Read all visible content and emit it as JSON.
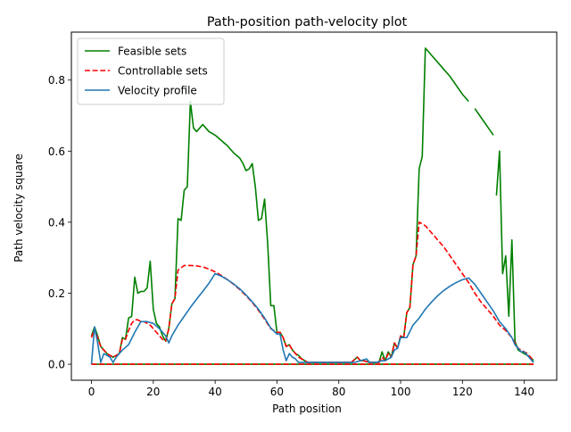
{
  "chart_data": {
    "type": "line",
    "title": "Path-position path-velocity plot",
    "xlabel": "Path position",
    "ylabel": "Path velocity square",
    "xlim": [
      -6.5,
      150.5
    ],
    "ylim": [
      -0.045,
      0.935
    ],
    "xticks": [
      0,
      20,
      40,
      60,
      80,
      100,
      120,
      140
    ],
    "yticks": [
      0.0,
      0.2,
      0.4,
      0.6,
      0.8
    ],
    "ytick_labels": [
      "0.0",
      "0.2",
      "0.4",
      "0.6",
      "0.8"
    ],
    "grid": false,
    "legend": "upper left",
    "series": [
      {
        "name": "Feasible sets",
        "color": "#008000",
        "style": "solid",
        "points": [
          [
            0,
            0.08
          ],
          [
            1,
            0.105
          ],
          [
            2,
            0.08
          ],
          [
            3,
            0.05
          ],
          [
            4,
            0.04
          ],
          [
            5,
            0.03
          ],
          [
            6,
            0.025
          ],
          [
            7,
            0.02
          ],
          [
            8,
            0.025
          ],
          [
            9,
            0.03
          ],
          [
            10,
            0.075
          ],
          [
            11,
            0.07
          ],
          [
            12,
            0.13
          ],
          [
            13,
            0.135
          ],
          [
            14,
            0.245
          ],
          [
            15,
            0.2
          ],
          [
            16,
            0.205
          ],
          [
            17,
            0.205
          ],
          [
            18,
            0.215
          ],
          [
            19,
            0.29
          ],
          [
            20,
            0.155
          ],
          [
            21,
            0.115
          ],
          [
            22,
            0.105
          ],
          [
            23,
            0.08
          ],
          [
            24,
            0.065
          ],
          [
            25,
            0.1
          ],
          [
            26,
            0.17
          ],
          [
            27,
            0.185
          ],
          [
            28,
            0.41
          ],
          [
            29,
            0.405
          ],
          [
            30,
            0.49
          ],
          [
            31,
            0.5
          ],
          [
            32,
            0.74
          ],
          [
            33,
            0.665
          ],
          [
            34,
            0.655
          ],
          [
            35,
            0.665
          ],
          [
            36,
            0.675
          ],
          [
            37,
            0.665
          ],
          [
            38,
            0.655
          ],
          [
            40,
            0.645
          ],
          [
            42,
            0.63
          ],
          [
            44,
            0.615
          ],
          [
            46,
            0.595
          ],
          [
            48,
            0.58
          ],
          [
            49,
            0.565
          ],
          [
            50,
            0.545
          ],
          [
            51,
            0.55
          ],
          [
            52,
            0.565
          ],
          [
            53,
            0.5
          ],
          [
            54,
            0.405
          ],
          [
            55,
            0.41
          ],
          [
            56,
            0.465
          ],
          [
            57,
            0.34
          ],
          [
            58,
            0.165
          ],
          [
            59,
            0.165
          ],
          [
            60,
            0.09
          ],
          [
            61,
            0.09
          ],
          [
            62,
            0.075
          ],
          [
            63,
            0.05
          ],
          [
            64,
            0.055
          ],
          [
            65,
            0.04
          ],
          [
            66,
            0.03
          ],
          [
            67,
            0.025
          ],
          [
            68,
            0.015
          ],
          [
            70,
            0.005
          ],
          [
            72,
            0.005
          ],
          [
            80,
            0.005
          ],
          [
            84,
            0.005
          ],
          [
            86,
            0.02
          ],
          [
            87,
            0.01
          ],
          [
            88,
            0.01
          ],
          [
            90,
            0.005
          ],
          [
            93,
            0.005
          ],
          [
            94,
            0.035
          ],
          [
            95,
            0.01
          ],
          [
            96,
            0.035
          ],
          [
            97,
            0.02
          ],
          [
            98,
            0.06
          ],
          [
            99,
            0.045
          ],
          [
            100,
            0.08
          ],
          [
            101,
            0.075
          ],
          [
            102,
            0.145
          ],
          [
            103,
            0.16
          ],
          [
            104,
            0.28
          ],
          [
            105,
            0.305
          ],
          [
            106,
            0.55
          ],
          [
            107,
            0.585
          ],
          [
            108,
            0.89
          ],
          [
            110,
            0.87
          ],
          [
            112,
            0.85
          ],
          [
            114,
            0.83
          ],
          [
            116,
            0.81
          ],
          [
            118,
            0.785
          ],
          [
            120,
            0.76
          ],
          [
            122,
            0.74
          ],
          null,
          [
            124,
            0.72
          ],
          [
            126,
            0.695
          ],
          [
            128,
            0.67
          ],
          [
            130,
            0.645
          ],
          null,
          [
            131,
            0.475
          ],
          [
            132,
            0.6
          ],
          [
            133,
            0.255
          ],
          [
            134,
            0.305
          ],
          [
            135,
            0.135
          ],
          [
            136,
            0.35
          ],
          [
            137,
            0.065
          ],
          [
            138,
            0.04
          ],
          [
            139,
            0.035
          ],
          [
            140,
            0.03
          ],
          [
            141,
            0.025
          ],
          [
            142,
            0.02
          ],
          [
            143,
            0.01
          ]
        ]
      },
      {
        "name": "Controllable sets",
        "color": "#ff0000",
        "style": "dashed",
        "points": [
          [
            0,
            0.075
          ],
          [
            1,
            0.1
          ],
          [
            2,
            0.075
          ],
          [
            3,
            0.05
          ],
          [
            4,
            0.04
          ],
          [
            5,
            0.03
          ],
          [
            6,
            0.025
          ],
          [
            7,
            0.02
          ],
          [
            8,
            0.025
          ],
          [
            9,
            0.03
          ],
          [
            10,
            0.07
          ],
          [
            11,
            0.07
          ],
          [
            12,
            0.095
          ],
          [
            13,
            0.115
          ],
          [
            14,
            0.125
          ],
          [
            15,
            0.125
          ],
          [
            16,
            0.12
          ],
          [
            17,
            0.12
          ],
          [
            18,
            0.115
          ],
          [
            19,
            0.11
          ],
          [
            20,
            0.1
          ],
          [
            21,
            0.09
          ],
          [
            22,
            0.08
          ],
          [
            23,
            0.07
          ],
          [
            24,
            0.065
          ],
          [
            25,
            0.1
          ],
          [
            26,
            0.17
          ],
          [
            27,
            0.185
          ],
          [
            28,
            0.265
          ],
          [
            30,
            0.278
          ],
          [
            32,
            0.278
          ],
          [
            34,
            0.277
          ],
          [
            36,
            0.274
          ],
          [
            38,
            0.268
          ],
          [
            40,
            0.26
          ],
          [
            42,
            0.25
          ],
          [
            44,
            0.238
          ],
          [
            46,
            0.225
          ],
          [
            48,
            0.21
          ],
          [
            50,
            0.193
          ],
          [
            52,
            0.174
          ],
          [
            54,
            0.152
          ],
          [
            56,
            0.127
          ],
          [
            58,
            0.1
          ],
          [
            60,
            0.09
          ],
          [
            61,
            0.09
          ],
          [
            62,
            0.075
          ],
          [
            63,
            0.05
          ],
          [
            64,
            0.055
          ],
          [
            65,
            0.04
          ],
          [
            66,
            0.03
          ],
          [
            67,
            0.02
          ],
          [
            68,
            0.015
          ],
          [
            70,
            0.005
          ],
          [
            72,
            0.005
          ],
          [
            84,
            0.005
          ],
          [
            86,
            0.02
          ],
          [
            87,
            0.01
          ],
          [
            88,
            0.01
          ],
          [
            90,
            0.005
          ],
          [
            93,
            0.005
          ],
          [
            94,
            0.02
          ],
          [
            95,
            0.01
          ],
          [
            96,
            0.03
          ],
          [
            97,
            0.02
          ],
          [
            98,
            0.06
          ],
          [
            99,
            0.045
          ],
          [
            100,
            0.08
          ],
          [
            101,
            0.075
          ],
          [
            102,
            0.145
          ],
          [
            103,
            0.16
          ],
          [
            104,
            0.28
          ],
          [
            105,
            0.305
          ],
          [
            106,
            0.4
          ],
          [
            108,
            0.39
          ],
          [
            110,
            0.37
          ],
          [
            112,
            0.35
          ],
          [
            114,
            0.33
          ],
          [
            116,
            0.305
          ],
          [
            118,
            0.28
          ],
          [
            120,
            0.255
          ],
          [
            122,
            0.23
          ],
          [
            124,
            0.2
          ],
          [
            126,
            0.175
          ],
          [
            128,
            0.155
          ],
          [
            130,
            0.135
          ],
          [
            132,
            0.11
          ],
          [
            134,
            0.095
          ],
          [
            136,
            0.075
          ],
          [
            137,
            0.06
          ],
          [
            138,
            0.045
          ],
          [
            139,
            0.04
          ],
          [
            140,
            0.035
          ],
          [
            141,
            0.03
          ],
          [
            142,
            0.02
          ],
          [
            143,
            0.01
          ]
        ]
      },
      {
        "name": "Velocity profile",
        "color": "#1f77b4",
        "style": "solid",
        "points": [
          [
            0,
            0.0
          ],
          [
            1,
            0.105
          ],
          [
            2,
            0.06
          ],
          [
            3,
            0.005
          ],
          [
            4,
            0.03
          ],
          [
            5,
            0.025
          ],
          [
            6,
            0.02
          ],
          [
            7,
            0.005
          ],
          [
            8,
            0.02
          ],
          [
            9,
            0.03
          ],
          [
            10,
            0.04
          ],
          [
            12,
            0.055
          ],
          [
            14,
            0.09
          ],
          [
            16,
            0.12
          ],
          [
            18,
            0.12
          ],
          [
            20,
            0.115
          ],
          [
            22,
            0.1
          ],
          [
            24,
            0.08
          ],
          [
            25,
            0.06
          ],
          [
            26,
            0.08
          ],
          [
            28,
            0.11
          ],
          [
            30,
            0.135
          ],
          [
            32,
            0.16
          ],
          [
            34,
            0.183
          ],
          [
            36,
            0.205
          ],
          [
            38,
            0.228
          ],
          [
            40,
            0.255
          ],
          [
            42,
            0.248
          ],
          [
            44,
            0.238
          ],
          [
            46,
            0.226
          ],
          [
            48,
            0.212
          ],
          [
            50,
            0.195
          ],
          [
            52,
            0.176
          ],
          [
            54,
            0.155
          ],
          [
            56,
            0.13
          ],
          [
            58,
            0.102
          ],
          [
            60,
            0.085
          ],
          [
            61,
            0.085
          ],
          [
            62,
            0.04
          ],
          [
            63,
            0.01
          ],
          [
            64,
            0.03
          ],
          [
            65,
            0.02
          ],
          [
            66,
            0.015
          ],
          [
            67,
            0.005
          ],
          [
            68,
            0.005
          ],
          [
            70,
            0.005
          ],
          [
            80,
            0.005
          ],
          [
            85,
            0.005
          ],
          [
            87,
            0.01
          ],
          [
            89,
            0.015
          ],
          [
            90,
            0.005
          ],
          [
            92,
            0.005
          ],
          [
            94,
            0.01
          ],
          [
            95,
            0.01
          ],
          [
            96,
            0.015
          ],
          [
            97,
            0.02
          ],
          [
            98,
            0.04
          ],
          [
            99,
            0.045
          ],
          [
            100,
            0.075
          ],
          [
            102,
            0.075
          ],
          [
            104,
            0.11
          ],
          [
            106,
            0.13
          ],
          [
            108,
            0.155
          ],
          [
            110,
            0.175
          ],
          [
            112,
            0.193
          ],
          [
            114,
            0.208
          ],
          [
            116,
            0.22
          ],
          [
            118,
            0.23
          ],
          [
            120,
            0.238
          ],
          [
            122,
            0.243
          ],
          [
            124,
            0.225
          ],
          [
            126,
            0.2
          ],
          [
            128,
            0.175
          ],
          [
            130,
            0.15
          ],
          [
            132,
            0.12
          ],
          [
            134,
            0.1
          ],
          [
            136,
            0.075
          ],
          [
            137,
            0.055
          ],
          [
            138,
            0.045
          ],
          [
            139,
            0.035
          ],
          [
            140,
            0.035
          ],
          [
            141,
            0.025
          ],
          [
            142,
            0.015
          ],
          [
            143,
            0.005
          ]
        ]
      },
      {
        "name": "",
        "color": "#008000",
        "style": "solid",
        "legend": false,
        "points": [
          [
            0,
            0.0
          ],
          [
            143,
            0.0
          ]
        ]
      },
      {
        "name": "",
        "color": "#ff0000",
        "style": "dashed",
        "legend": false,
        "points": [
          [
            0,
            0.0
          ],
          [
            143,
            0.0
          ]
        ]
      }
    ]
  }
}
